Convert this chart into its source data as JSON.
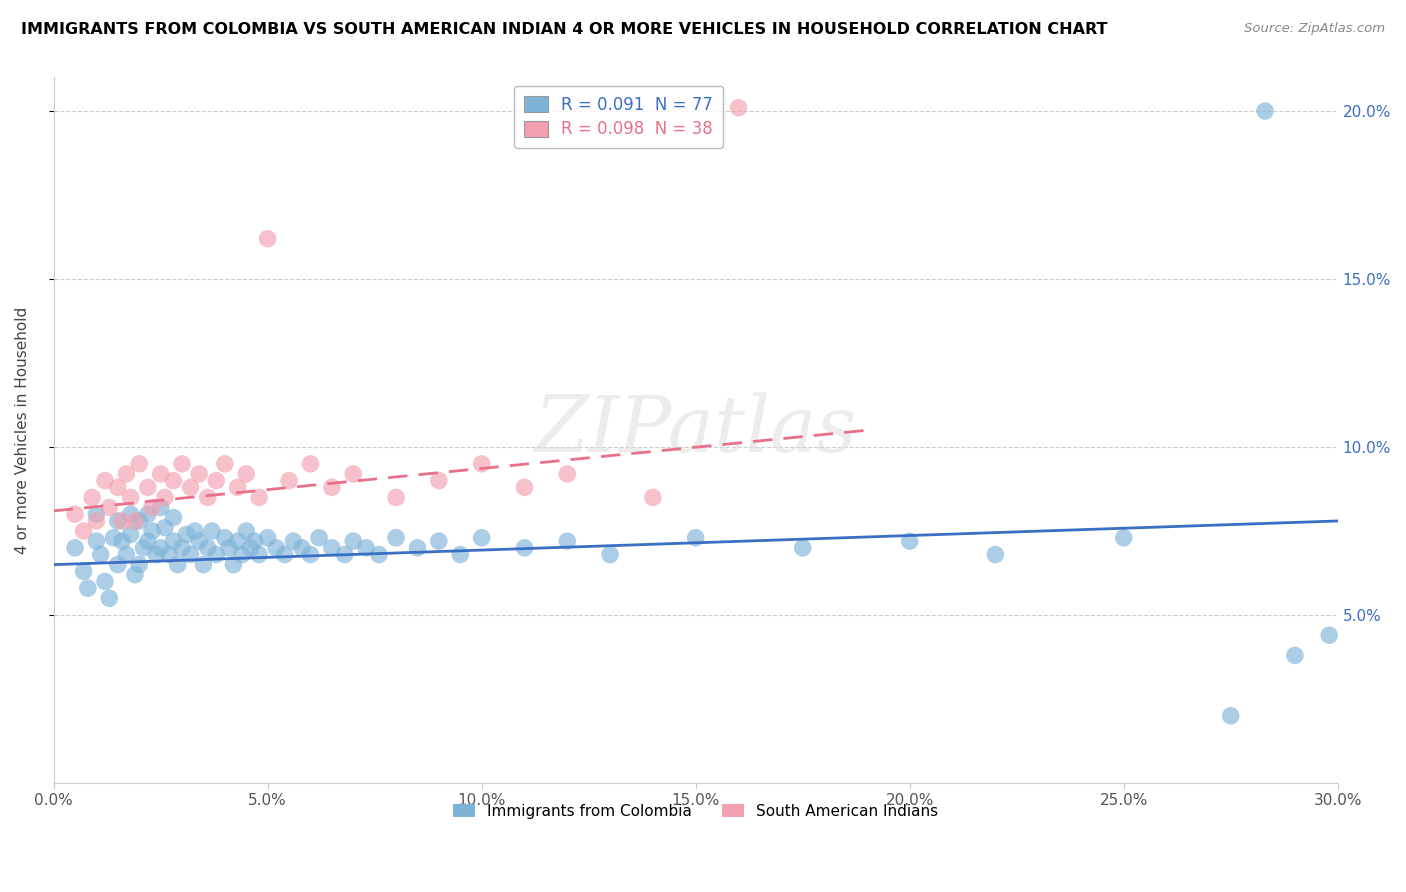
{
  "title": "IMMIGRANTS FROM COLOMBIA VS SOUTH AMERICAN INDIAN 4 OR MORE VEHICLES IN HOUSEHOLD CORRELATION CHART",
  "source": "Source: ZipAtlas.com",
  "ylabel": "4 or more Vehicles in Household",
  "xlim": [
    0.0,
    0.3
  ],
  "ylim": [
    0.0,
    0.21
  ],
  "xtick_labels": [
    "0.0%",
    "5.0%",
    "10.0%",
    "15.0%",
    "20.0%",
    "25.0%",
    "30.0%"
  ],
  "xtick_vals": [
    0.0,
    0.05,
    0.1,
    0.15,
    0.2,
    0.25,
    0.3
  ],
  "ytick_labels": [
    "5.0%",
    "10.0%",
    "15.0%",
    "20.0%"
  ],
  "ytick_vals": [
    0.05,
    0.1,
    0.15,
    0.2
  ],
  "legend_label_blue": "R = 0.091  N = 77",
  "legend_label_pink": "R = 0.098  N = 38",
  "legend_label_colombia": "Immigrants from Colombia",
  "legend_label_indian": "South American Indians",
  "blue_color": "#7EB3D8",
  "pink_color": "#F4A0B0",
  "blue_line_color": "#3A6FC4",
  "pink_line_color": "#E8708A",
  "watermark": "ZIPatlas",
  "blue_trend_x0": 0.0,
  "blue_trend_y0": 0.065,
  "blue_trend_x1": 0.3,
  "blue_trend_y1": 0.078,
  "pink_trend_x0": 0.0,
  "pink_trend_y0": 0.081,
  "pink_trend_x1": 0.19,
  "pink_trend_y1": 0.105,
  "colombia_x": [
    0.005,
    0.007,
    0.008,
    0.01,
    0.01,
    0.011,
    0.012,
    0.013,
    0.014,
    0.015,
    0.015,
    0.016,
    0.017,
    0.018,
    0.018,
    0.019,
    0.02,
    0.02,
    0.021,
    0.022,
    0.022,
    0.023,
    0.024,
    0.025,
    0.025,
    0.026,
    0.027,
    0.028,
    0.028,
    0.029,
    0.03,
    0.031,
    0.032,
    0.033,
    0.034,
    0.035,
    0.036,
    0.037,
    0.038,
    0.04,
    0.041,
    0.042,
    0.043,
    0.044,
    0.045,
    0.046,
    0.047,
    0.048,
    0.05,
    0.052,
    0.054,
    0.056,
    0.058,
    0.06,
    0.062,
    0.065,
    0.068,
    0.07,
    0.073,
    0.076,
    0.08,
    0.085,
    0.09,
    0.095,
    0.1,
    0.11,
    0.12,
    0.13,
    0.15,
    0.175,
    0.2,
    0.22,
    0.25,
    0.275,
    0.283,
    0.29,
    0.298
  ],
  "colombia_y": [
    0.07,
    0.063,
    0.058,
    0.08,
    0.072,
    0.068,
    0.06,
    0.055,
    0.073,
    0.078,
    0.065,
    0.072,
    0.068,
    0.074,
    0.08,
    0.062,
    0.078,
    0.065,
    0.07,
    0.072,
    0.08,
    0.075,
    0.068,
    0.082,
    0.07,
    0.076,
    0.068,
    0.072,
    0.079,
    0.065,
    0.07,
    0.074,
    0.068,
    0.075,
    0.072,
    0.065,
    0.07,
    0.075,
    0.068,
    0.073,
    0.07,
    0.065,
    0.072,
    0.068,
    0.075,
    0.07,
    0.072,
    0.068,
    0.073,
    0.07,
    0.068,
    0.072,
    0.07,
    0.068,
    0.073,
    0.07,
    0.068,
    0.072,
    0.07,
    0.068,
    0.073,
    0.07,
    0.072,
    0.068,
    0.073,
    0.07,
    0.072,
    0.068,
    0.073,
    0.07,
    0.072,
    0.068,
    0.073,
    0.02,
    0.2,
    0.038,
    0.044
  ],
  "indian_x": [
    0.005,
    0.007,
    0.009,
    0.01,
    0.012,
    0.013,
    0.015,
    0.016,
    0.017,
    0.018,
    0.019,
    0.02,
    0.022,
    0.023,
    0.025,
    0.026,
    0.028,
    0.03,
    0.032,
    0.034,
    0.036,
    0.038,
    0.04,
    0.043,
    0.045,
    0.048,
    0.05,
    0.055,
    0.06,
    0.065,
    0.07,
    0.08,
    0.09,
    0.1,
    0.11,
    0.12,
    0.14,
    0.16
  ],
  "indian_y": [
    0.08,
    0.075,
    0.085,
    0.078,
    0.09,
    0.082,
    0.088,
    0.078,
    0.092,
    0.085,
    0.078,
    0.095,
    0.088,
    0.082,
    0.092,
    0.085,
    0.09,
    0.095,
    0.088,
    0.092,
    0.085,
    0.09,
    0.095,
    0.088,
    0.092,
    0.085,
    0.162,
    0.09,
    0.095,
    0.088,
    0.092,
    0.085,
    0.09,
    0.095,
    0.088,
    0.092,
    0.085,
    0.201
  ]
}
